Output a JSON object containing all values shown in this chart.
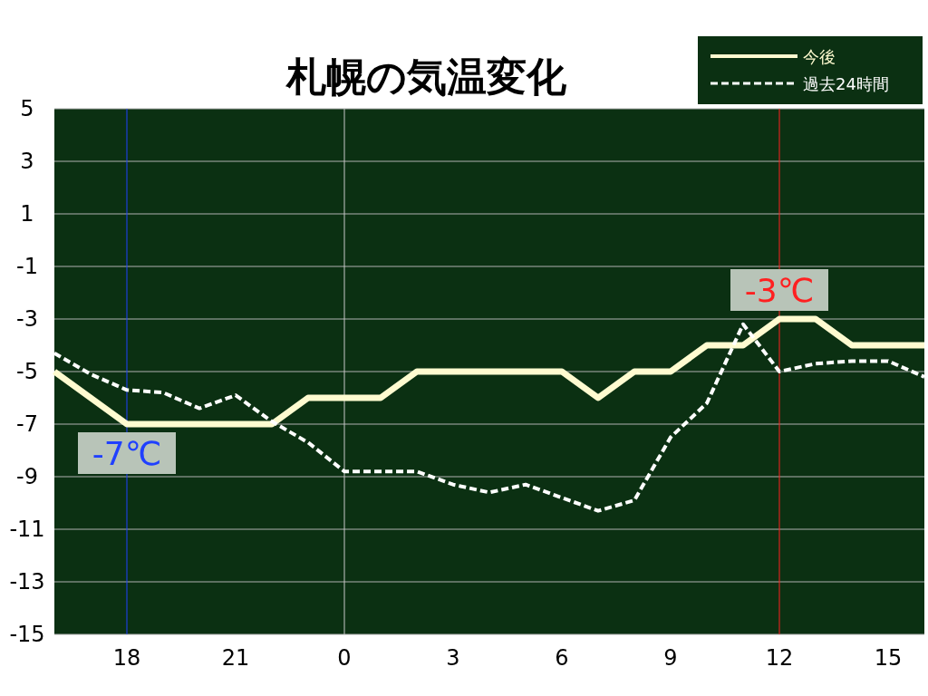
{
  "chart_data": {
    "type": "line",
    "title": "札幌の気温変化",
    "categories": [
      null,
      null,
      "18",
      null,
      null,
      "21",
      null,
      null,
      "0",
      null,
      null,
      "3",
      null,
      null,
      "6",
      null,
      null,
      "9",
      null,
      null,
      "12",
      null,
      null,
      "15",
      null
    ],
    "series": [
      {
        "name": "今後",
        "color": "#fffbd0",
        "line_style": "solid",
        "values": [
          -5,
          -6,
          -7,
          -7,
          -7,
          -7,
          -7,
          -6,
          -6,
          -6,
          -5,
          -5,
          -5,
          -5,
          -5,
          -6,
          -5,
          -5,
          -4,
          -4,
          -3,
          -3,
          -4,
          -4,
          -4
        ]
      },
      {
        "name": "過去24時間",
        "color": "#ffffff",
        "line_style": "dashed",
        "values": [
          -4.3,
          -5.1,
          -5.7,
          -5.8,
          -6.4,
          -5.9,
          -6.9,
          -7.7,
          -8.8,
          -8.8,
          -8.8,
          -9.3,
          -9.6,
          -9.3,
          -9.8,
          -10.3,
          -9.9,
          -7.5,
          -6.2,
          -3.2,
          -5.0,
          -4.7,
          -4.6,
          -4.6,
          -5.2
        ]
      }
    ],
    "ylim": [
      -15,
      5
    ],
    "yticks": [
      -15,
      -13,
      -11,
      -9,
      -7,
      -5,
      -3,
      -1,
      1,
      3,
      5
    ],
    "grid": "y",
    "ref_lines": [
      {
        "axis": "x",
        "value": "18",
        "color": "#2040ff"
      },
      {
        "axis": "x",
        "value": "0",
        "color": "#c8c8c8"
      },
      {
        "axis": "x",
        "value": "12",
        "color": "#ff2020"
      }
    ],
    "annotations": [
      {
        "text": "-7℃",
        "x": "18",
        "y": -7
      },
      {
        "text": "-3℃",
        "x": "12",
        "y": -3
      }
    ],
    "legend": "top right",
    "marker": "none"
  }
}
